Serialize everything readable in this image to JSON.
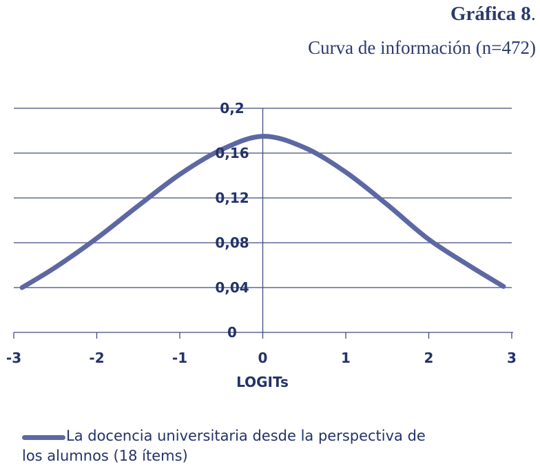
{
  "heading": {
    "label": "Gráfica 8",
    "suffix": ".",
    "subtitle": "Curva de información (n=472)"
  },
  "chart_data": {
    "type": "line",
    "xlabel": "LOGITs",
    "ylabel": "",
    "xlim": [
      -3,
      3
    ],
    "ylim": [
      0,
      0.2
    ],
    "x_ticks": [
      "-3",
      "-2",
      "-1",
      "0",
      "1",
      "2",
      "3"
    ],
    "y_ticks": [
      "0",
      "0,04",
      "0,08",
      "0,12",
      "0,16",
      "0,2"
    ],
    "grid": "horizontal",
    "legend_position": "bottom",
    "series": [
      {
        "name": "La docencia universitaria desde la perspectiva de los alumnos (18 ítems)",
        "color": "#5d68a3",
        "x": [
          -2.9,
          -2.5,
          -2.0,
          -1.5,
          -1.0,
          -0.5,
          0.0,
          0.5,
          1.0,
          1.5,
          2.0,
          2.5,
          2.9
        ],
        "values": [
          0.04,
          0.058,
          0.084,
          0.113,
          0.141,
          0.163,
          0.175,
          0.165,
          0.143,
          0.114,
          0.083,
          0.059,
          0.041
        ]
      }
    ]
  },
  "legend": {
    "line1": "La docencia universitaria desde la perspectiva de",
    "line2": "los alumnos (18 ítems)"
  }
}
